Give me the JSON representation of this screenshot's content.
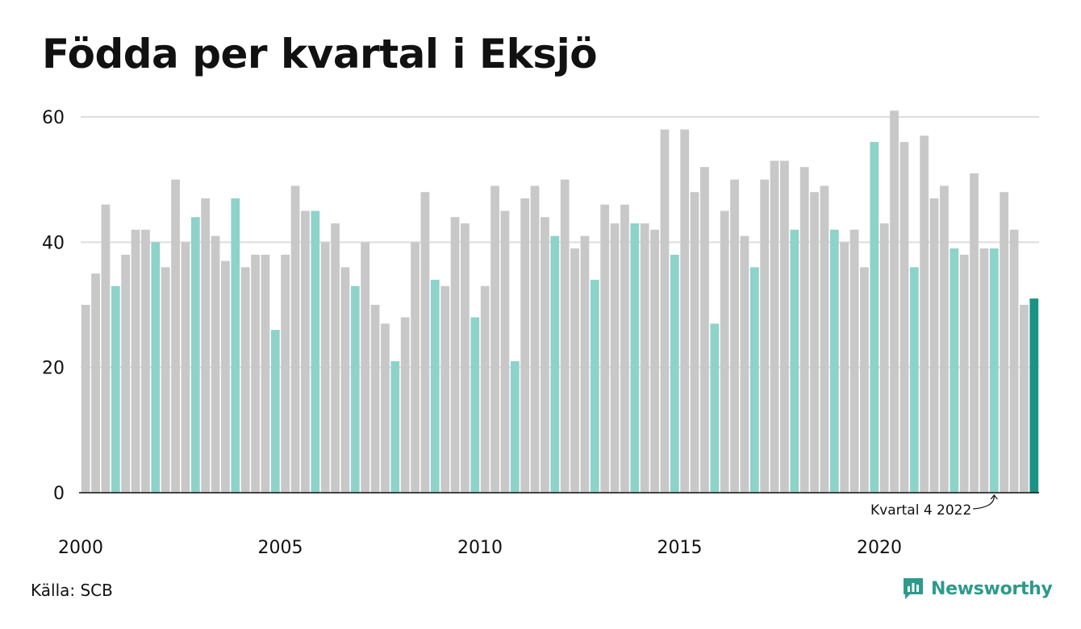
{
  "chart_data": {
    "type": "bar",
    "title": "Födda per kvartal i Eksjö",
    "xlabel": "",
    "ylabel": "",
    "ylim": [
      0,
      62
    ],
    "yticks": [
      0,
      20,
      40,
      60
    ],
    "xtick_labels": [
      "2000",
      "2005",
      "2010",
      "2015",
      "2020"
    ],
    "grid": true,
    "values": [
      30,
      35,
      46,
      33,
      38,
      42,
      42,
      40,
      36,
      50,
      40,
      44,
      47,
      41,
      37,
      47,
      36,
      38,
      38,
      26,
      38,
      49,
      45,
      45,
      40,
      43,
      36,
      33,
      40,
      30,
      27,
      21,
      28,
      40,
      48,
      34,
      33,
      44,
      43,
      28,
      33,
      49,
      45,
      21,
      47,
      49,
      44,
      41,
      50,
      39,
      41,
      34,
      46,
      43,
      46,
      43,
      43,
      42,
      58,
      38,
      58,
      48,
      52,
      27,
      45,
      50,
      41,
      36,
      50,
      53,
      53,
      42,
      52,
      48,
      49,
      42,
      40,
      42,
      36,
      56,
      43,
      61,
      56,
      36,
      57,
      47,
      49,
      39,
      38,
      51,
      39,
      39,
      48,
      42,
      30,
      31
    ],
    "colors": {
      "default": "#c8c8c8",
      "q4": "#8dd3c9",
      "latest": "#1a9384"
    },
    "annotation": {
      "text": "Kvartal 4 2022"
    }
  },
  "source": "Källa: SCB",
  "brand": {
    "name": "Newsworthy",
    "icon": "newsworthy-logo-icon",
    "color": "#2e9a8b"
  }
}
